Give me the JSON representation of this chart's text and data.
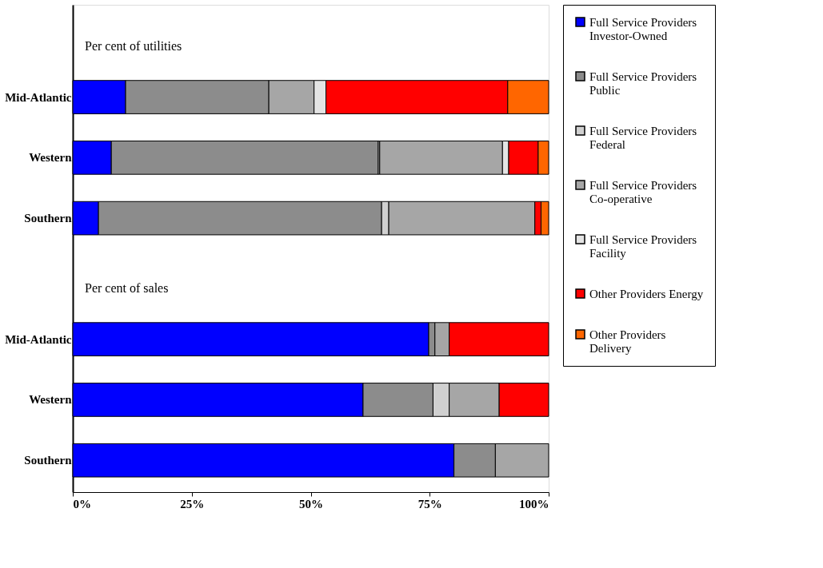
{
  "chart_data": {
    "type": "bar",
    "orientation": "horizontal",
    "stacked": true,
    "categories": [
      null,
      "Mid-Atlantic",
      "Western",
      "Southern",
      null,
      "Mid-Atlantic",
      "Western",
      "Southern"
    ],
    "series": [
      {
        "name": "Full Service Providers Investor-Owned",
        "color": "#0000ff",
        "values": [
          null,
          11.1,
          8.1,
          5.4,
          null,
          74.8,
          61.0,
          80.1
        ]
      },
      {
        "name": "Full Service Providers Public",
        "color": "#8c8c8c",
        "values": [
          null,
          30.1,
          56.1,
          59.5,
          null,
          1.3,
          14.7,
          8.7
        ]
      },
      {
        "name": "Full Service Providers Federal",
        "color": "#d0d0d0",
        "values": [
          null,
          null,
          0.3,
          1.5,
          null,
          null,
          3.4,
          null
        ]
      },
      {
        "name": "Full Service Providers Co-operative",
        "color": "#a6a6a6",
        "values": [
          null,
          9.5,
          25.8,
          30.7,
          null,
          3.0,
          10.5,
          11.2
        ]
      },
      {
        "name": "Full Service Providers Facility",
        "color": "#e4e4e4",
        "values": [
          null,
          2.5,
          1.3,
          null,
          null,
          null,
          null,
          null
        ]
      },
      {
        "name": "Other Providers Energy",
        "color": "#ff0000",
        "values": [
          null,
          38.2,
          6.2,
          1.3,
          null,
          20.9,
          10.4,
          null
        ]
      },
      {
        "name": "Other Providers Delivery",
        "color": "#ff6600",
        "values": [
          null,
          8.6,
          2.2,
          1.6,
          null,
          null,
          null,
          null
        ]
      }
    ],
    "xlim": [
      0,
      100
    ],
    "xticks": [
      {
        "value": 0,
        "label": "0%"
      },
      {
        "value": 25,
        "label": "25%"
      },
      {
        "value": 50,
        "label": "50%"
      },
      {
        "value": 75,
        "label": "75%"
      },
      {
        "value": 100,
        "label": "100%"
      }
    ],
    "annotations": [
      "Per cent of utilities",
      "Per cent of sales"
    ],
    "legend": "right",
    "grid": false
  }
}
